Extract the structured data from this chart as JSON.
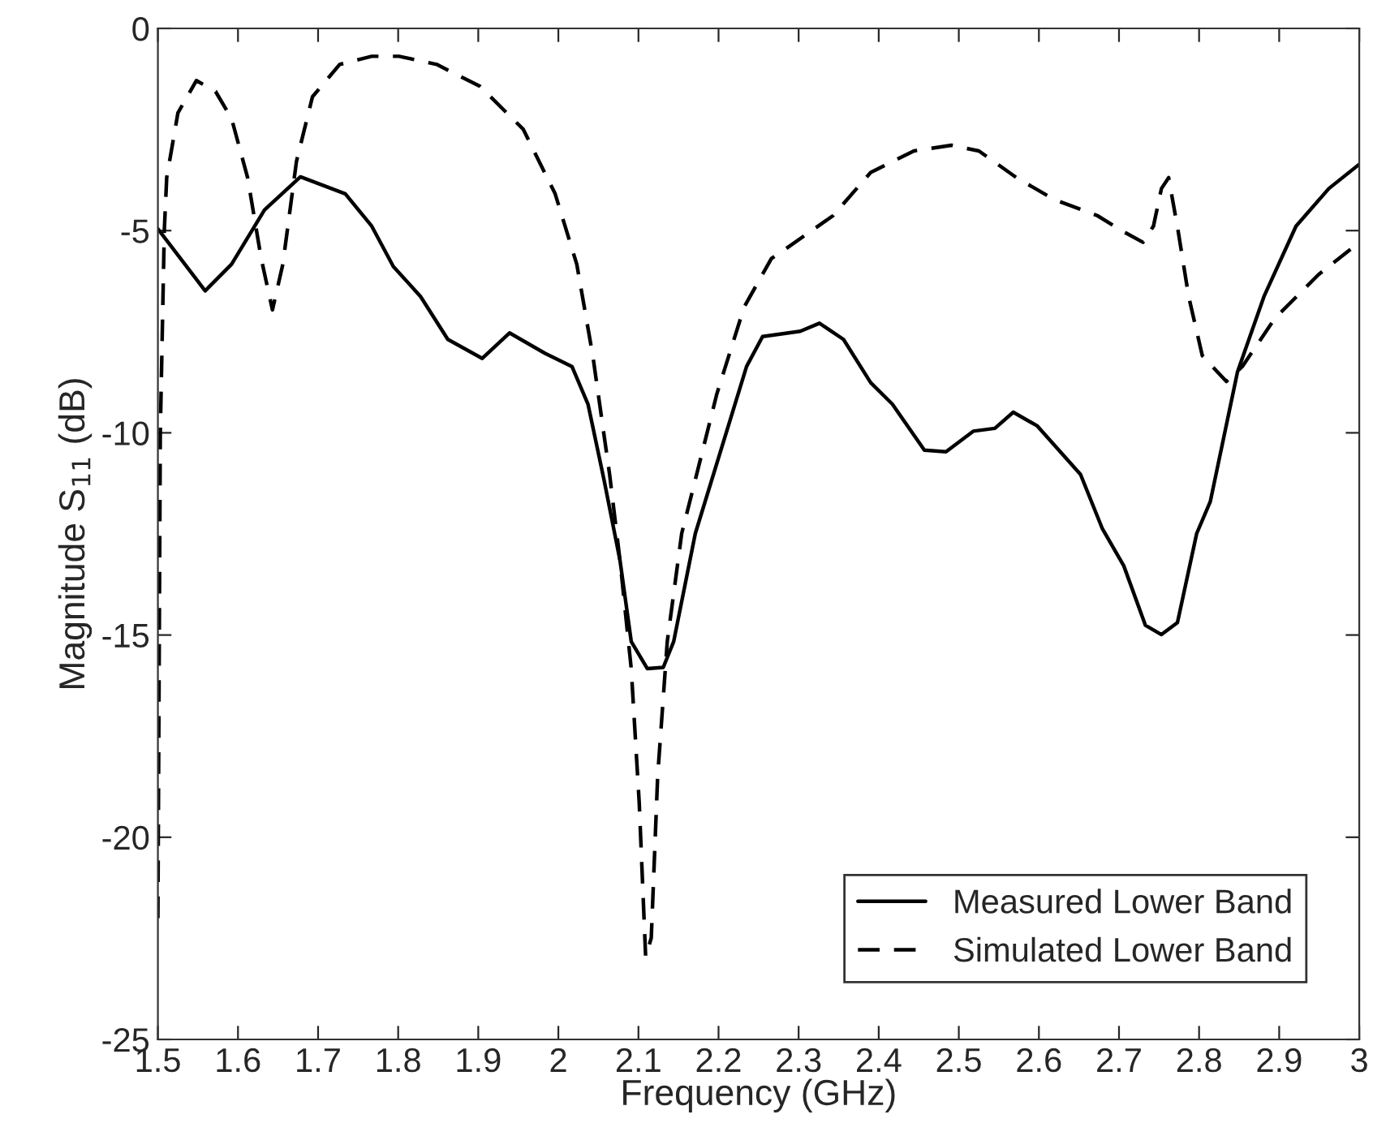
{
  "chart_data": {
    "type": "line",
    "xlabel": "Frequency (GHz)",
    "ylabel": "Magnitude S$_{11}$ (dB)",
    "xlim": [
      1.5,
      3
    ],
    "xticks": [
      1.5,
      1.6,
      1.7,
      1.8,
      1.9,
      2,
      2.1,
      2.2,
      2.3,
      2.4,
      2.5,
      2.6,
      2.7,
      2.8,
      2.9,
      3
    ],
    "ylim": [
      -25,
      0
    ],
    "yticks": [
      -25,
      -20,
      -15,
      -10,
      -5,
      0
    ],
    "grid": false,
    "legend": "bottom right",
    "marker": "none",
    "series": [
      {
        "name": "Measured Lower Band",
        "color": "#000000",
        "line_style": "solid",
        "x": [
          1.5,
          1.559,
          1.592,
          1.633,
          1.678,
          1.734,
          1.767,
          1.794,
          1.828,
          1.862,
          1.905,
          1.939,
          1.983,
          2.017,
          2.037,
          2.057,
          2.077,
          2.091,
          2.111,
          2.131,
          2.144,
          2.171,
          2.235,
          2.255,
          2.302,
          2.326,
          2.356,
          2.39,
          2.417,
          2.457,
          2.484,
          2.518,
          2.545,
          2.568,
          2.598,
          2.652,
          2.679,
          2.706,
          2.733,
          2.753,
          2.773,
          2.797,
          2.814,
          2.848,
          2.881,
          2.921,
          2.962,
          3.0
        ],
        "values": [
          -4.96,
          -6.49,
          -5.83,
          -4.49,
          -3.67,
          -4.09,
          -4.89,
          -5.89,
          -6.63,
          -7.69,
          -8.16,
          -7.53,
          -8.03,
          -8.36,
          -9.29,
          -11.16,
          -13.16,
          -15.16,
          -15.83,
          -15.8,
          -15.16,
          -12.49,
          -8.36,
          -7.62,
          -7.49,
          -7.29,
          -7.69,
          -8.76,
          -9.29,
          -10.43,
          -10.47,
          -9.96,
          -9.89,
          -9.49,
          -9.83,
          -11.03,
          -12.36,
          -13.29,
          -14.76,
          -14.99,
          -14.69,
          -12.49,
          -11.7,
          -8.49,
          -6.63,
          -4.89,
          -3.96,
          -3.36
        ]
      },
      {
        "name": "Simulated Lower Band",
        "color": "#000000",
        "line_style": "dashed",
        "x": [
          1.5,
          1.503,
          1.508,
          1.511,
          1.525,
          1.548,
          1.572,
          1.592,
          1.612,
          1.629,
          1.643,
          1.656,
          1.673,
          1.693,
          1.727,
          1.767,
          1.801,
          1.848,
          1.902,
          1.956,
          1.996,
          2.023,
          2.043,
          2.064,
          2.077,
          2.091,
          2.101,
          2.109,
          2.116,
          2.124,
          2.136,
          2.154,
          2.171,
          2.198,
          2.232,
          2.266,
          2.276,
          2.343,
          2.39,
          2.444,
          2.491,
          2.525,
          2.572,
          2.619,
          2.673,
          2.706,
          2.73,
          2.743,
          2.753,
          2.762,
          2.774,
          2.787,
          2.804,
          2.834,
          2.854,
          2.895,
          2.949,
          3.0
        ],
        "values": [
          -22,
          -10,
          -5,
          -3.69,
          -2.09,
          -1.29,
          -1.56,
          -2.23,
          -3.69,
          -5.69,
          -6.96,
          -5.83,
          -3.29,
          -1.69,
          -0.89,
          -0.69,
          -0.69,
          -0.89,
          -1.43,
          -2.49,
          -4.09,
          -5.83,
          -8.09,
          -11.03,
          -13.16,
          -15.83,
          -19.16,
          -22.96,
          -22.49,
          -18.49,
          -15.16,
          -12.49,
          -11.16,
          -9.03,
          -6.89,
          -5.69,
          -5.56,
          -4.63,
          -3.56,
          -3.03,
          -2.89,
          -3.03,
          -3.69,
          -4.23,
          -4.63,
          -5.03,
          -5.29,
          -4.89,
          -3.96,
          -3.69,
          -5.03,
          -6.63,
          -8.09,
          -8.73,
          -8.36,
          -7.16,
          -6.09,
          -5.29
        ]
      }
    ]
  }
}
